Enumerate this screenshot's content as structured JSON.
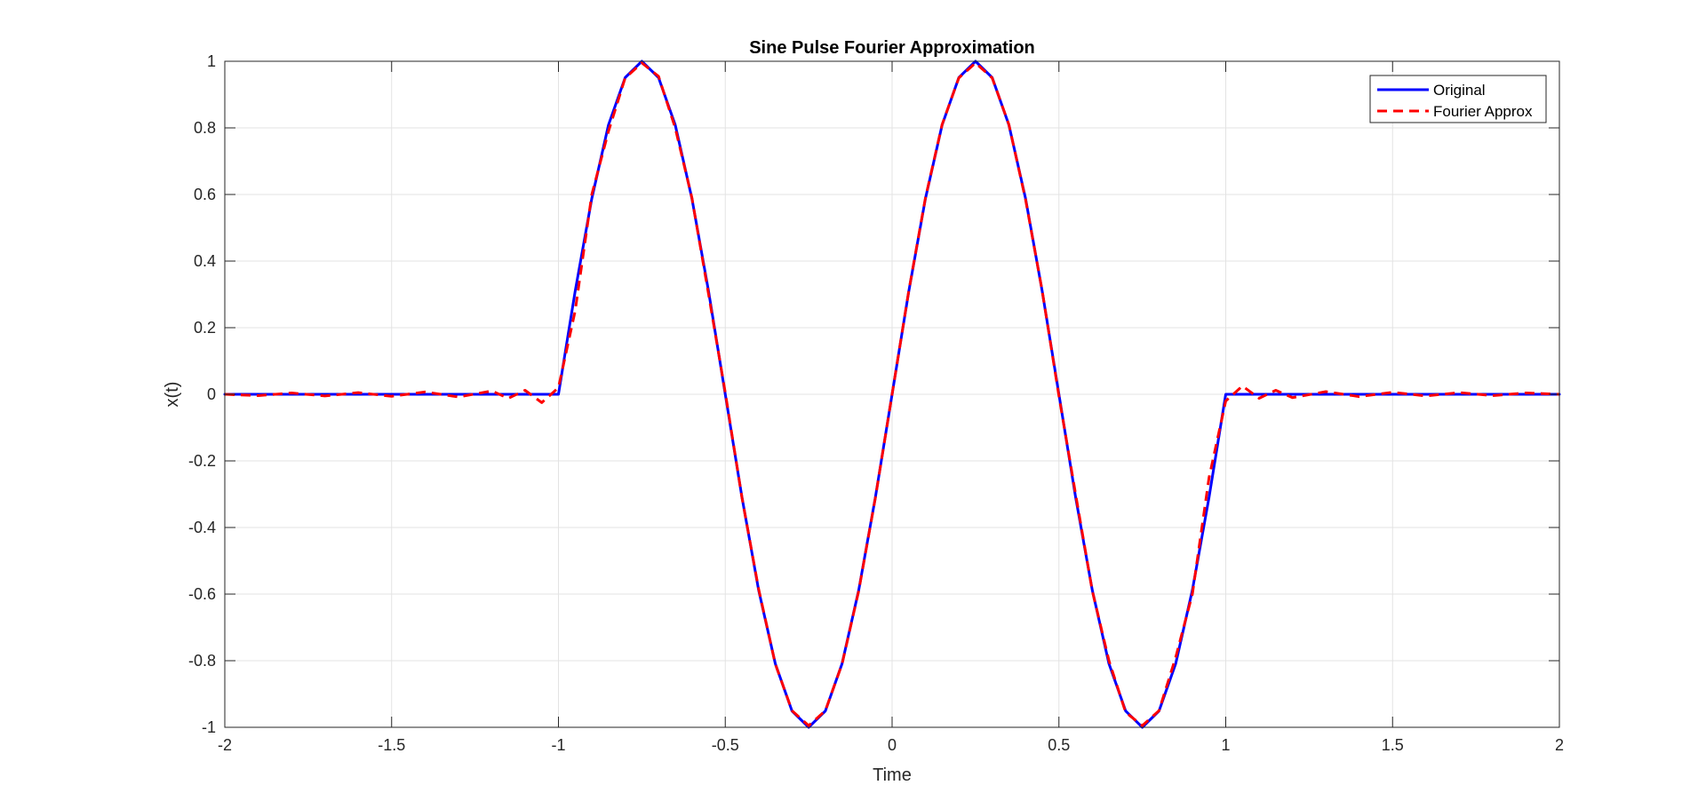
{
  "chart_data": {
    "type": "line",
    "title": "Sine Pulse Fourier Approximation",
    "xlabel": "Time",
    "ylabel": "x(t)",
    "xlim": [
      -2,
      2
    ],
    "ylim": [
      -1,
      1
    ],
    "xticks": [
      -2,
      -1.5,
      -1,
      -0.5,
      0,
      0.5,
      1,
      1.5,
      2
    ],
    "xtick_labels": [
      "-2",
      "-1.5",
      "-1",
      "-0.5",
      "0",
      "0.5",
      "1",
      "1.5",
      "2"
    ],
    "yticks": [
      -1,
      -0.8,
      -0.6,
      -0.4,
      -0.2,
      0,
      0.2,
      0.4,
      0.6,
      0.8,
      1
    ],
    "ytick_labels": [
      "-1",
      "-0.8",
      "-0.6",
      "-0.4",
      "-0.2",
      "0",
      "0.2",
      "0.4",
      "0.6",
      "0.8",
      "1"
    ],
    "grid": true,
    "legend_position": "top-right",
    "series": [
      {
        "name": "Original",
        "color": "#0000ff",
        "style": "solid",
        "x": [
          -2,
          -1.0,
          -0.95,
          -0.9,
          -0.85,
          -0.8,
          -0.75,
          -0.7,
          -0.65,
          -0.6,
          -0.55,
          -0.5,
          -0.45,
          -0.4,
          -0.35,
          -0.3,
          -0.25,
          -0.2,
          -0.15,
          -0.1,
          -0.05,
          0,
          0.05,
          0.1,
          0.15,
          0.2,
          0.25,
          0.3,
          0.35,
          0.4,
          0.45,
          0.5,
          0.55,
          0.6,
          0.65,
          0.7,
          0.75,
          0.8,
          0.85,
          0.9,
          0.95,
          1.0,
          2
        ],
        "y": [
          0,
          0,
          0.309,
          0.588,
          0.809,
          0.951,
          1.0,
          0.951,
          0.809,
          0.588,
          0.309,
          0,
          -0.309,
          -0.588,
          -0.809,
          -0.951,
          -1.0,
          -0.951,
          -0.809,
          -0.588,
          -0.309,
          0,
          0.309,
          0.588,
          0.809,
          0.951,
          1.0,
          0.951,
          0.809,
          0.588,
          0.309,
          0,
          -0.309,
          -0.588,
          -0.809,
          -0.951,
          -1.0,
          -0.951,
          -0.809,
          -0.588,
          -0.309,
          0,
          0
        ]
      },
      {
        "name": "Fourier Approx",
        "color": "#ff0000",
        "style": "dashed",
        "x": [
          -2,
          -1.9,
          -1.8,
          -1.7,
          -1.6,
          -1.5,
          -1.4,
          -1.3,
          -1.2,
          -1.15,
          -1.1,
          -1.05,
          -1.0,
          -0.95,
          -0.9,
          -0.85,
          -0.8,
          -0.75,
          -0.7,
          -0.65,
          -0.6,
          -0.55,
          -0.5,
          -0.45,
          -0.4,
          -0.35,
          -0.3,
          -0.25,
          -0.2,
          -0.15,
          -0.1,
          -0.05,
          0,
          0.05,
          0.1,
          0.15,
          0.2,
          0.25,
          0.3,
          0.35,
          0.4,
          0.45,
          0.5,
          0.55,
          0.6,
          0.65,
          0.7,
          0.75,
          0.8,
          0.85,
          0.9,
          0.95,
          1.0,
          1.05,
          1.1,
          1.15,
          1.2,
          1.3,
          1.4,
          1.5,
          1.6,
          1.7,
          1.8,
          1.9,
          2
        ],
        "y": [
          0,
          -0.004,
          0.004,
          -0.005,
          0.005,
          -0.006,
          0.007,
          -0.008,
          0.01,
          -0.012,
          0.012,
          -0.025,
          0.02,
          0.25,
          0.6,
          0.79,
          0.95,
          0.995,
          0.955,
          0.8,
          0.59,
          0.3,
          0.005,
          -0.31,
          -0.585,
          -0.81,
          -0.95,
          -0.995,
          -0.95,
          -0.81,
          -0.59,
          -0.31,
          0,
          0.31,
          0.59,
          0.81,
          0.95,
          0.995,
          0.95,
          0.81,
          0.585,
          0.31,
          -0.005,
          -0.3,
          -0.59,
          -0.8,
          -0.955,
          -0.995,
          -0.95,
          -0.79,
          -0.6,
          -0.25,
          -0.02,
          0.025,
          -0.012,
          0.012,
          -0.01,
          0.008,
          -0.007,
          0.006,
          -0.005,
          0.005,
          -0.004,
          0.004,
          0
        ]
      }
    ]
  }
}
